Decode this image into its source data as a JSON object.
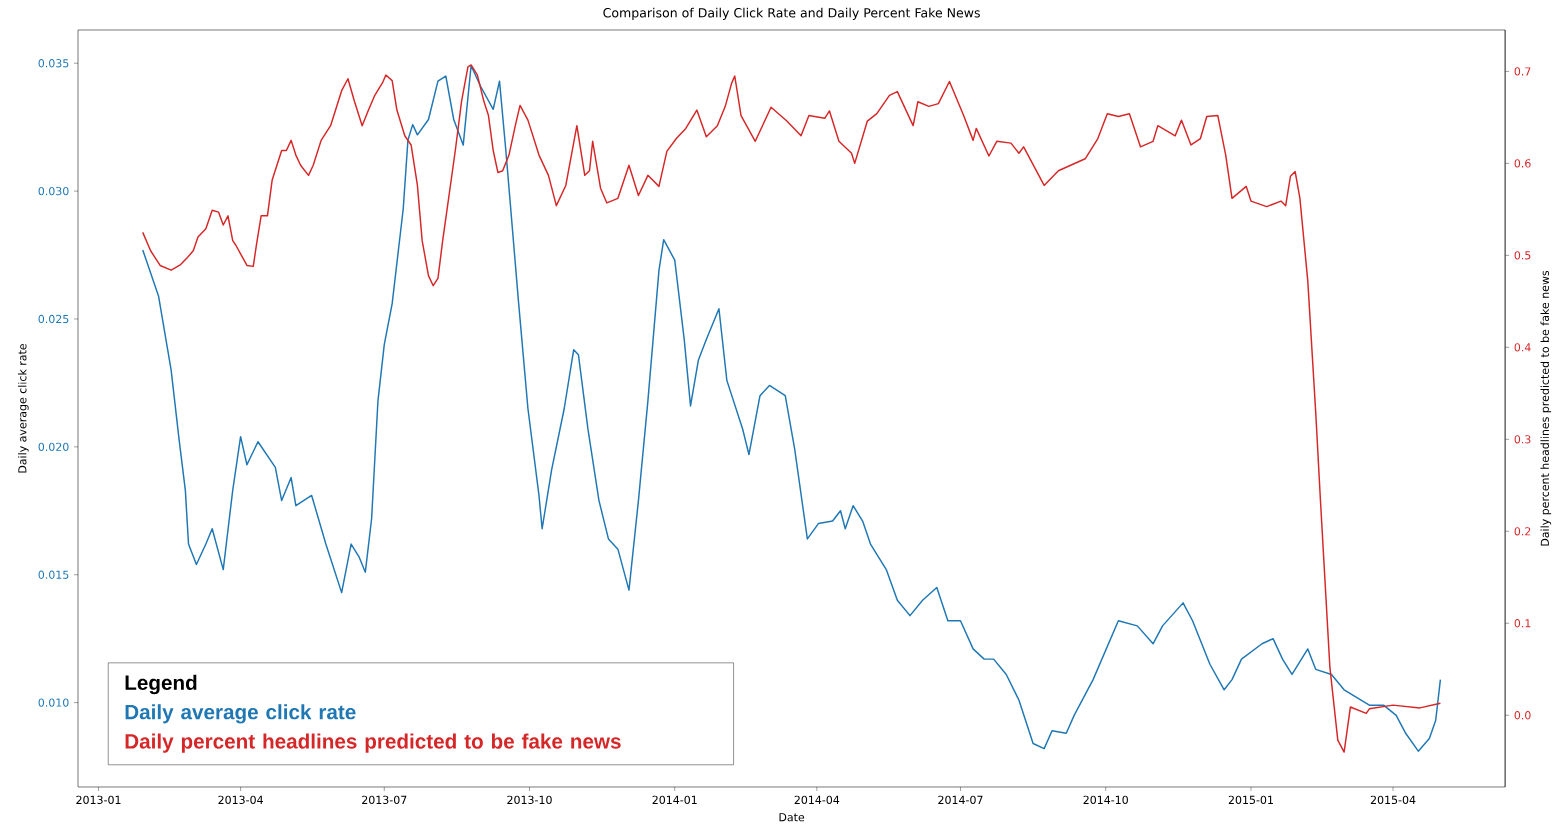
{
  "chart_data": {
    "type": "line",
    "title": "Comparison of Daily Click Rate and Daily Percent Fake News",
    "xlabel": "Date",
    "ylabel": "Daily average click rate",
    "y2label": "Daily percent headlines predicted to be fake news",
    "legend_title": "Legend",
    "legend": "bottom left",
    "xlim": [
      "2012-12-19",
      "2015-06-11"
    ],
    "xticks": [
      "2013-01",
      "2013-04",
      "2013-07",
      "2013-10",
      "2014-01",
      "2014-04",
      "2014-07",
      "2014-10",
      "2015-01",
      "2015-04"
    ],
    "ylim": [
      0.0067,
      0.0363
    ],
    "yticks": [
      {
        "value": 0.01,
        "label": "0.010"
      },
      {
        "value": 0.015,
        "label": "0.015"
      },
      {
        "value": 0.02,
        "label": "0.020"
      },
      {
        "value": 0.025,
        "label": "0.025"
      },
      {
        "value": 0.03,
        "label": "0.030"
      },
      {
        "value": 0.035,
        "label": "0.035"
      }
    ],
    "y2lim": [
      -0.078,
      0.745
    ],
    "y2ticks": [
      {
        "value": 0,
        "label": "0.0"
      },
      0.1,
      0.2,
      0.3,
      0.4,
      0.5,
      0.6,
      0.7
    ],
    "series": [
      {
        "name": "Daily average click rate",
        "color": "#1f77b4",
        "axis": "y",
        "x": [
          "2013-01-29",
          "2013-02-08",
          "2013-02-16",
          "2013-02-21",
          "2013-02-25",
          "2013-02-27",
          "2013-03-04",
          "2013-03-10",
          "2013-03-14",
          "2013-03-21",
          "2013-03-27",
          "2013-04-01",
          "2013-04-05",
          "2013-04-12",
          "2013-04-23",
          "2013-04-27",
          "2013-05-03",
          "2013-05-06",
          "2013-05-16",
          "2013-05-25",
          "2013-06-04",
          "2013-06-10",
          "2013-06-15",
          "2013-06-19",
          "2013-06-23",
          "2013-06-27",
          "2013-07-01",
          "2013-07-06",
          "2013-07-13",
          "2013-07-16",
          "2013-07-19",
          "2013-07-22",
          "2013-07-29",
          "2013-08-04",
          "2013-08-09",
          "2013-08-14",
          "2013-08-20",
          "2013-08-25",
          "2013-08-31",
          "2013-09-08",
          "2013-09-12",
          "2013-09-16",
          "2013-09-24",
          "2013-09-30",
          "2013-10-07",
          "2013-10-09",
          "2013-10-15",
          "2013-10-23",
          "2013-10-29",
          "2013-11-01",
          "2013-11-07",
          "2013-11-14",
          "2013-11-20",
          "2013-11-26",
          "2013-12-03",
          "2013-12-09",
          "2013-12-15",
          "2013-12-22",
          "2013-12-25",
          "2014-01-01",
          "2014-01-07",
          "2014-01-11",
          "2014-01-16",
          "2014-01-21",
          "2014-01-29",
          "2014-02-03",
          "2014-02-13",
          "2014-02-17",
          "2014-02-24",
          "2014-03-02",
          "2014-03-12",
          "2014-03-18",
          "2014-03-26",
          "2014-04-02",
          "2014-04-11",
          "2014-04-16",
          "2014-04-19",
          "2014-04-24",
          "2014-04-30",
          "2014-05-05",
          "2014-05-15",
          "2014-05-22",
          "2014-05-30",
          "2014-06-07",
          "2014-06-16",
          "2014-06-23",
          "2014-07-01",
          "2014-07-09",
          "2014-07-16",
          "2014-07-22",
          "2014-07-30",
          "2014-08-07",
          "2014-08-16",
          "2014-08-23",
          "2014-08-28",
          "2014-09-06",
          "2014-09-11",
          "2014-09-23",
          "2014-10-09",
          "2014-10-21",
          "2014-10-31",
          "2014-11-06",
          "2014-11-19",
          "2014-11-25",
          "2014-12-06",
          "2014-12-15",
          "2014-12-20",
          "2014-12-26",
          "2015-01-08",
          "2015-01-15",
          "2015-01-21",
          "2015-01-27",
          "2015-02-06",
          "2015-02-11",
          "2015-02-21",
          "2015-03-01",
          "2015-03-17",
          "2015-03-26",
          "2015-04-03",
          "2015-04-09",
          "2015-04-17",
          "2015-04-24",
          "2015-04-28",
          "2015-05-01"
        ],
        "values": [
          0.0277,
          0.0259,
          0.023,
          0.0203,
          0.0183,
          0.0162,
          0.0154,
          0.0162,
          0.0168,
          0.0152,
          0.0183,
          0.0204,
          0.0193,
          0.0202,
          0.0192,
          0.0179,
          0.0188,
          0.0177,
          0.0181,
          0.0162,
          0.0143,
          0.0162,
          0.0157,
          0.0151,
          0.0172,
          0.0218,
          0.024,
          0.0256,
          0.0293,
          0.032,
          0.0326,
          0.0322,
          0.0328,
          0.0343,
          0.0345,
          0.0328,
          0.0318,
          0.0349,
          0.0341,
          0.0332,
          0.0343,
          0.0316,
          0.0257,
          0.0215,
          0.0181,
          0.0168,
          0.0191,
          0.0215,
          0.0238,
          0.0236,
          0.0207,
          0.0179,
          0.0164,
          0.016,
          0.0144,
          0.0179,
          0.0218,
          0.0269,
          0.0281,
          0.0273,
          0.0242,
          0.0216,
          0.0234,
          0.0242,
          0.0254,
          0.0226,
          0.0207,
          0.0197,
          0.022,
          0.0224,
          0.022,
          0.0199,
          0.0164,
          0.017,
          0.0171,
          0.0175,
          0.0168,
          0.0177,
          0.0171,
          0.0162,
          0.0152,
          0.014,
          0.0134,
          0.014,
          0.0145,
          0.0132,
          0.0132,
          0.0121,
          0.0117,
          0.0117,
          0.0111,
          0.0101,
          0.0084,
          0.0082,
          0.0089,
          0.0088,
          0.0095,
          0.0109,
          0.0132,
          0.013,
          0.0123,
          0.013,
          0.0139,
          0.0132,
          0.0115,
          0.0105,
          0.0109,
          0.0117,
          0.0123,
          0.0125,
          0.0117,
          0.0111,
          0.0121,
          0.0113,
          0.0111,
          0.0105,
          0.0099,
          0.0099,
          0.0095,
          0.0088,
          0.0081,
          0.0086,
          0.0093,
          0.0109
        ]
      },
      {
        "name": "Daily percent headlines predicted to be fake news",
        "color": "#d62728",
        "axis": "y2",
        "x": [
          "2013-01-29",
          "2013-02-03",
          "2013-02-09",
          "2013-02-16",
          "2013-02-22",
          "2013-02-26",
          "2013-03-02",
          "2013-03-05",
          "2013-03-10",
          "2013-03-14",
          "2013-03-18",
          "2013-03-21",
          "2013-03-24",
          "2013-03-27",
          "2013-03-29",
          "2013-04-05",
          "2013-04-09",
          "2013-04-11",
          "2013-04-14",
          "2013-04-18",
          "2013-04-21",
          "2013-04-27",
          "2013-04-30",
          "2013-05-03",
          "2013-05-06",
          "2013-05-09",
          "2013-05-14",
          "2013-05-17",
          "2013-05-22",
          "2013-05-28",
          "2013-06-04",
          "2013-06-08",
          "2013-06-12",
          "2013-06-17",
          "2013-06-21",
          "2013-06-25",
          "2013-06-30",
          "2013-07-02",
          "2013-07-06",
          "2013-07-09",
          "2013-07-14",
          "2013-07-18",
          "2013-07-22",
          "2013-07-25",
          "2013-07-29",
          "2013-08-01",
          "2013-08-04",
          "2013-08-07",
          "2013-08-11",
          "2013-08-15",
          "2013-08-19",
          "2013-08-23",
          "2013-08-25",
          "2013-08-29",
          "2013-09-02",
          "2013-09-05",
          "2013-09-08",
          "2013-09-11",
          "2013-09-14",
          "2013-09-18",
          "2013-09-22",
          "2013-09-25",
          "2013-09-30",
          "2013-10-07",
          "2013-10-13",
          "2013-10-18",
          "2013-10-24",
          "2013-10-31",
          "2013-11-05",
          "2013-11-08",
          "2013-11-10",
          "2013-11-15",
          "2013-11-19",
          "2013-11-26",
          "2013-12-03",
          "2013-12-09",
          "2013-12-15",
          "2013-12-22",
          "2013-12-27",
          "2014-01-02",
          "2014-01-08",
          "2014-01-15",
          "2014-01-21",
          "2014-01-28",
          "2014-02-02",
          "2014-02-06",
          "2014-02-08",
          "2014-02-12",
          "2014-02-21",
          "2014-03-03",
          "2014-03-13",
          "2014-03-22",
          "2014-03-27",
          "2014-04-06",
          "2014-04-09",
          "2014-04-15",
          "2014-04-23",
          "2014-04-25",
          "2014-05-03",
          "2014-05-09",
          "2014-05-17",
          "2014-05-22",
          "2014-06-01",
          "2014-06-04",
          "2014-06-11",
          "2014-06-17",
          "2014-06-24",
          "2014-07-03",
          "2014-07-09",
          "2014-07-11",
          "2014-07-19",
          "2014-07-24",
          "2014-08-02",
          "2014-08-07",
          "2014-08-10",
          "2014-08-23",
          "2014-09-01",
          "2014-09-18",
          "2014-09-26",
          "2014-10-02",
          "2014-10-09",
          "2014-10-16",
          "2014-10-23",
          "2014-10-31",
          "2014-11-03",
          "2014-11-14",
          "2014-11-18",
          "2014-11-24",
          "2014-11-30",
          "2014-12-04",
          "2014-12-11",
          "2014-12-16",
          "2014-12-20",
          "2014-12-29",
          "2015-01-01",
          "2015-01-11",
          "2015-01-20",
          "2015-01-23",
          "2015-01-26",
          "2015-01-29",
          "2015-02-01",
          "2015-02-06",
          "2015-02-11",
          "2015-02-14",
          "2015-02-20",
          "2015-02-25",
          "2015-03-01",
          "2015-03-05",
          "2015-03-15",
          "2015-03-17",
          "2015-04-01",
          "2015-04-18",
          "2015-05-01"
        ],
        "values": [
          0.525,
          0.505,
          0.489,
          0.484,
          0.49,
          0.497,
          0.505,
          0.52,
          0.529,
          0.549,
          0.547,
          0.533,
          0.543,
          0.516,
          0.511,
          0.489,
          0.488,
          0.511,
          0.543,
          0.543,
          0.582,
          0.614,
          0.614,
          0.625,
          0.609,
          0.598,
          0.587,
          0.598,
          0.625,
          0.641,
          0.679,
          0.692,
          0.668,
          0.641,
          0.658,
          0.674,
          0.688,
          0.696,
          0.69,
          0.658,
          0.63,
          0.62,
          0.576,
          0.516,
          0.478,
          0.467,
          0.475,
          0.516,
          0.565,
          0.614,
          0.668,
          0.705,
          0.707,
          0.696,
          0.668,
          0.652,
          0.614,
          0.59,
          0.592,
          0.609,
          0.641,
          0.663,
          0.647,
          0.609,
          0.587,
          0.554,
          0.576,
          0.641,
          0.587,
          0.592,
          0.624,
          0.573,
          0.557,
          0.562,
          0.598,
          0.565,
          0.587,
          0.575,
          0.613,
          0.627,
          0.638,
          0.658,
          0.629,
          0.641,
          0.662,
          0.687,
          0.695,
          0.652,
          0.624,
          0.661,
          0.646,
          0.63,
          0.652,
          0.649,
          0.657,
          0.624,
          0.611,
          0.6,
          0.646,
          0.654,
          0.674,
          0.678,
          0.641,
          0.667,
          0.662,
          0.665,
          0.689,
          0.652,
          0.625,
          0.638,
          0.608,
          0.624,
          0.622,
          0.611,
          0.618,
          0.576,
          0.592,
          0.605,
          0.627,
          0.654,
          0.651,
          0.654,
          0.618,
          0.624,
          0.641,
          0.63,
          0.647,
          0.62,
          0.627,
          0.651,
          0.652,
          0.609,
          0.562,
          0.575,
          0.559,
          0.553,
          0.559,
          0.554,
          0.586,
          0.591,
          0.562,
          0.472,
          0.33,
          0.234,
          0.052,
          -0.027,
          -0.04,
          0.009,
          0.002,
          0.007,
          0.011,
          0.008,
          0.013
        ]
      }
    ]
  }
}
